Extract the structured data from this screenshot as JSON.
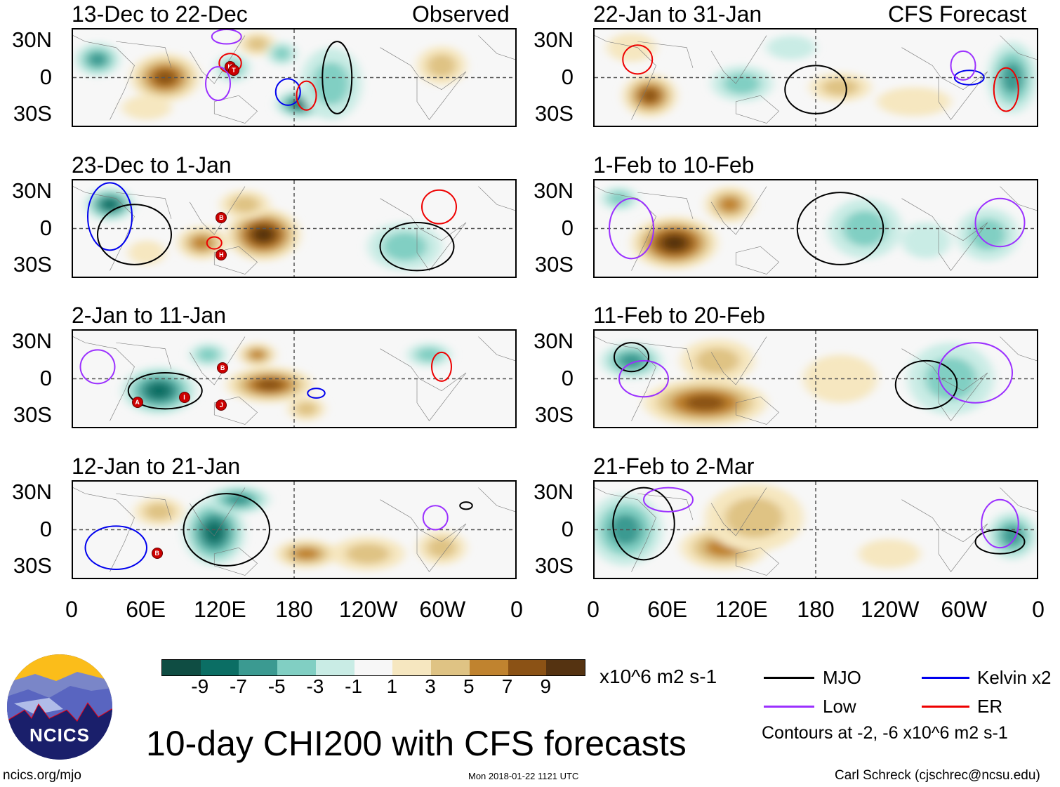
{
  "title": "10-day CHI200 with CFS forecasts",
  "observed_label": "Observed",
  "forecast_label": "CFS Forecast",
  "lat_labels": [
    "30N",
    "0",
    "30S"
  ],
  "lon_labels": [
    "0",
    "60E",
    "120E",
    "180",
    "120W",
    "60W",
    "0"
  ],
  "colorbar": {
    "labels": [
      "-9",
      "-7",
      "-5",
      "-3",
      "-1",
      "1",
      "3",
      "5",
      "7",
      "9"
    ],
    "colors": [
      "#0f4d43",
      "#0b6e64",
      "#3b9a91",
      "#81cfc3",
      "#c9ece5",
      "#f7f7f7",
      "#f6e7c0",
      "#dfc384",
      "#c0832f",
      "#8b5215",
      "#553311"
    ],
    "units": "x10^6 m2 s-1"
  },
  "legend": {
    "mjo": "MJO",
    "kelvin": "Kelvin x2",
    "low": "Low",
    "er": "ER",
    "contours_note": "Contours at -2, -6 x10^6 m2 s-1",
    "colors": {
      "mjo": "#000000",
      "kelvin": "#0000ee",
      "low": "#9b30ff",
      "er": "#ee0000"
    }
  },
  "footer": {
    "website": "ncics.org/mjo",
    "timestamp": "Mon 2018-01-22 1121 UTC",
    "author": "Carl Schreck (cjschrec@ncsu.edu)",
    "logo_text": "NCICS"
  },
  "panels": [
    {
      "title": "13-Dec to 22-Dec",
      "col": 0,
      "row": 0,
      "blobs": [
        [
          75,
          0,
          28,
          20,
          8
        ],
        [
          20,
          15,
          18,
          14,
          -5
        ],
        [
          185,
          -22,
          20,
          12,
          -7
        ],
        [
          210,
          -5,
          25,
          30,
          -4
        ],
        [
          150,
          28,
          15,
          10,
          3
        ],
        [
          300,
          10,
          20,
          16,
          4
        ],
        [
          130,
          8,
          14,
          12,
          -3
        ],
        [
          170,
          20,
          12,
          10,
          -3
        ],
        [
          60,
          -25,
          20,
          10,
          2
        ]
      ],
      "contours": [
        [
          "kelvin",
          175,
          -12,
          10,
          11
        ],
        [
          "er",
          128,
          12,
          9,
          8
        ],
        [
          "low",
          118,
          -5,
          10,
          14
        ],
        [
          "er",
          190,
          -15,
          8,
          12
        ],
        [
          "mjo",
          215,
          0,
          12,
          30
        ],
        [
          "low",
          125,
          34,
          12,
          6
        ]
      ],
      "storms": [
        [
          "K",
          127,
          10
        ],
        [
          "T",
          130,
          7
        ]
      ]
    },
    {
      "title": "23-Dec to 1-Jan",
      "col": 0,
      "row": 1,
      "blobs": [
        [
          155,
          -5,
          30,
          22,
          9
        ],
        [
          105,
          -12,
          20,
          14,
          6
        ],
        [
          30,
          20,
          20,
          14,
          -7
        ],
        [
          270,
          -15,
          30,
          20,
          -3
        ],
        [
          140,
          20,
          20,
          12,
          3
        ],
        [
          60,
          -20,
          15,
          10,
          2
        ]
      ],
      "contours": [
        [
          "kelvin",
          30,
          10,
          18,
          28
        ],
        [
          "mjo",
          50,
          -5,
          30,
          25
        ],
        [
          "er",
          298,
          18,
          14,
          14
        ],
        [
          "er",
          115,
          -12,
          6,
          5
        ],
        [
          "mjo",
          280,
          -15,
          30,
          20
        ]
      ],
      "storms": [
        [
          "B",
          120,
          10
        ],
        [
          "H",
          120,
          -20
        ]
      ]
    },
    {
      "title": "2-Jan to 11-Jan",
      "col": 0,
      "row": 2,
      "blobs": [
        [
          160,
          -5,
          35,
          15,
          8
        ],
        [
          150,
          20,
          15,
          10,
          6
        ],
        [
          70,
          -10,
          30,
          20,
          -7
        ],
        [
          110,
          20,
          15,
          10,
          -4
        ],
        [
          290,
          20,
          18,
          10,
          -4
        ],
        [
          190,
          -25,
          15,
          10,
          3
        ]
      ],
      "contours": [
        [
          "mjo",
          75,
          -10,
          30,
          15
        ],
        [
          "kelvin",
          198,
          -12,
          7,
          4
        ],
        [
          "er",
          300,
          10,
          8,
          12
        ],
        [
          "low",
          20,
          10,
          14,
          14
        ]
      ],
      "storms": [
        [
          "A",
          52,
          -18
        ],
        [
          "I",
          90,
          -14
        ],
        [
          "B",
          121,
          10
        ],
        [
          "J",
          120,
          -20
        ]
      ]
    },
    {
      "title": "12-Jan to 21-Jan",
      "col": 0,
      "row": 3,
      "blobs": [
        [
          115,
          -2,
          25,
          28,
          -7
        ],
        [
          135,
          25,
          25,
          12,
          -5
        ],
        [
          190,
          -20,
          25,
          12,
          6
        ],
        [
          240,
          -20,
          30,
          14,
          3
        ],
        [
          300,
          -15,
          20,
          14,
          3
        ],
        [
          70,
          15,
          20,
          12,
          3
        ]
      ],
      "contours": [
        [
          "kelvin",
          35,
          -15,
          25,
          18
        ],
        [
          "mjo",
          125,
          0,
          35,
          30
        ],
        [
          "low",
          295,
          10,
          10,
          10
        ],
        [
          "mjo",
          320,
          20,
          5,
          3
        ]
      ],
      "storms": [
        [
          "B",
          68,
          -18
        ]
      ]
    },
    {
      "title": "22-Jan to 31-Jan",
      "col": 1,
      "row": 0,
      "blobs": [
        [
          45,
          -15,
          22,
          18,
          7
        ],
        [
          120,
          -5,
          25,
          15,
          -4
        ],
        [
          200,
          -8,
          25,
          12,
          3
        ],
        [
          340,
          0,
          20,
          30,
          -5
        ],
        [
          30,
          25,
          20,
          12,
          2
        ],
        [
          160,
          25,
          20,
          10,
          -2
        ],
        [
          260,
          -20,
          30,
          12,
          2
        ]
      ],
      "contours": [
        [
          "kelvin",
          305,
          0,
          12,
          6
        ],
        [
          "er",
          335,
          -10,
          10,
          18
        ],
        [
          "er",
          35,
          15,
          12,
          12
        ],
        [
          "mjo",
          180,
          -10,
          25,
          20
        ],
        [
          "low",
          300,
          10,
          10,
          12
        ]
      ],
      "storms": []
    },
    {
      "title": "1-Feb to 10-Feb",
      "col": 1,
      "row": 1,
      "blobs": [
        [
          65,
          -12,
          35,
          22,
          9
        ],
        [
          110,
          20,
          20,
          15,
          5
        ],
        [
          220,
          0,
          30,
          25,
          -3
        ],
        [
          320,
          -5,
          25,
          22,
          -4
        ],
        [
          20,
          25,
          15,
          10,
          -3
        ],
        [
          270,
          -10,
          20,
          15,
          -2
        ]
      ],
      "contours": [
        [
          "mjo",
          200,
          0,
          35,
          30
        ],
        [
          "low",
          330,
          5,
          20,
          20
        ],
        [
          "low",
          30,
          0,
          18,
          25
        ]
      ],
      "storms": []
    },
    {
      "title": "11-Feb to 20-Feb",
      "col": 1,
      "row": 2,
      "blobs": [
        [
          90,
          -20,
          50,
          20,
          7
        ],
        [
          100,
          15,
          30,
          18,
          3
        ],
        [
          290,
          0,
          35,
          30,
          -4
        ],
        [
          30,
          15,
          25,
          15,
          -5
        ],
        [
          200,
          0,
          30,
          20,
          2
        ]
      ],
      "contours": [
        [
          "mjo",
          270,
          -5,
          25,
          20
        ],
        [
          "low",
          310,
          5,
          30,
          25
        ],
        [
          "mjo",
          30,
          18,
          14,
          12
        ],
        [
          "low",
          40,
          0,
          20,
          15
        ]
      ],
      "storms": []
    },
    {
      "title": "21-Feb to 2-Mar",
      "col": 1,
      "row": 3,
      "blobs": [
        [
          105,
          -15,
          35,
          18,
          6
        ],
        [
          130,
          10,
          40,
          28,
          3
        ],
        [
          25,
          0,
          30,
          30,
          -6
        ],
        [
          340,
          -5,
          20,
          20,
          -5
        ],
        [
          240,
          -20,
          25,
          12,
          2
        ]
      ],
      "contours": [
        [
          "mjo",
          40,
          5,
          25,
          30
        ],
        [
          "mjo",
          330,
          -10,
          20,
          10
        ],
        [
          "low",
          330,
          5,
          15,
          20
        ],
        [
          "low",
          60,
          25,
          20,
          10
        ]
      ],
      "storms": []
    }
  ]
}
